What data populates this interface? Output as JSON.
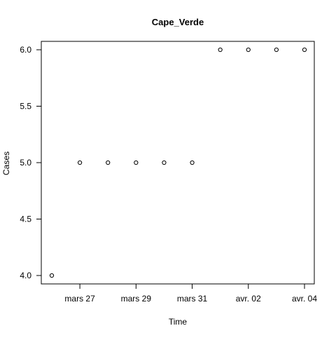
{
  "chart_data": {
    "type": "scatter",
    "title": "Cape_Verde",
    "xlabel": "Time",
    "ylabel": "Cases",
    "x": [
      "2020-03-26",
      "2020-03-27",
      "2020-03-28",
      "2020-03-29",
      "2020-03-30",
      "2020-03-31",
      "2020-04-01",
      "2020-04-02",
      "2020-04-03",
      "2020-04-04"
    ],
    "y": [
      4,
      5,
      5,
      5,
      5,
      5,
      6,
      6,
      6,
      6
    ],
    "xlim": [
      "2020-03-26",
      "2020-04-04"
    ],
    "ylim": [
      4.0,
      6.0
    ],
    "x_ticks": [
      {
        "date": "2020-03-27",
        "label": "mars 27"
      },
      {
        "date": "2020-03-29",
        "label": "mars 29"
      },
      {
        "date": "2020-03-31",
        "label": "mars 31"
      },
      {
        "date": "2020-04-02",
        "label": "avr. 02"
      },
      {
        "date": "2020-04-04",
        "label": "avr. 04"
      }
    ],
    "y_ticks": [
      {
        "value": 4.0,
        "label": "4.0"
      },
      {
        "value": 4.5,
        "label": "4.5"
      },
      {
        "value": 5.0,
        "label": "5.0"
      },
      {
        "value": 5.5,
        "label": "5.5"
      },
      {
        "value": 6.0,
        "label": "6.0"
      }
    ],
    "grid": false,
    "legend": "none",
    "point_style": "open-circle",
    "colors": {
      "point": "#000000",
      "axis": "#000000",
      "background": "#ffffff"
    }
  }
}
